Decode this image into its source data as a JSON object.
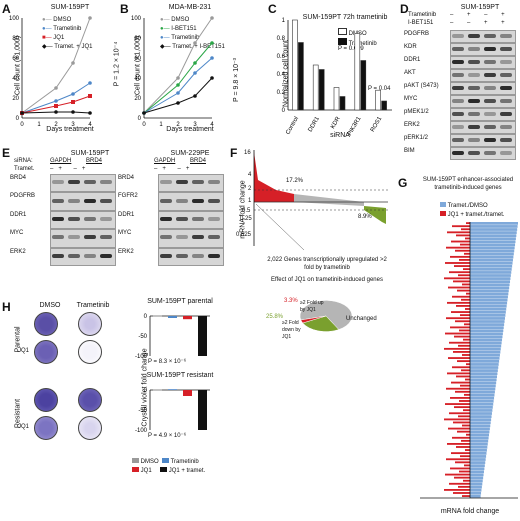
{
  "colors": {
    "dmso": "#9a9a9a",
    "tram": "#4e87c8",
    "ibet": "#2aa646",
    "jq1": "#d62027",
    "combo": "#111111",
    "lightblue": "#7fa9da",
    "olive": "#7aa02e",
    "piegray": "#b5b5b5"
  },
  "panels": {
    "A": "A",
    "B": "B",
    "C": "C",
    "D": "D",
    "E": "E",
    "F": "F",
    "G": "G",
    "H": "H"
  },
  "A": {
    "title": "SUM-159PT",
    "ylabel": "Cell count (×1,000)",
    "xlabel": "Days treatment",
    "legend": [
      "DMSO",
      "Trametinib",
      "JQ1",
      "Tramet. + JQ1"
    ],
    "pval": "P = 1.2 × 10⁻⁴"
  },
  "B": {
    "title": "MDA-MB-231",
    "ylabel": "Cell count (×1,000)",
    "xlabel": "Days treatment",
    "legend": [
      "DMSO",
      "I-BET151",
      "Trametinib",
      "Tramet. + I-BET151"
    ],
    "pval": "P = 9.8 × 10⁻³"
  },
  "C": {
    "title": "SUM-159PT 72h trametinib",
    "ylabel": "Normalized cell count",
    "xlabel": "siRNA",
    "legend": [
      "DMSO",
      "Trametinib"
    ],
    "p1": "P = 0.009",
    "p2": "P = 0.04"
  },
  "D": {
    "title": "SUM-159PT",
    "treat": [
      "Trametinib",
      "I-BET151"
    ],
    "proteins": [
      "PDGFRB",
      "KDR",
      "DDR1",
      "AKT",
      "pAKT (S473)",
      "MYC",
      "pMEK1/2",
      "ERK2",
      "pERK1/2",
      "BIM"
    ]
  },
  "E": {
    "left": {
      "title": "SUM-159PT",
      "sirna": "siRNA:",
      "tramet": "Tramet.",
      "groups": [
        "GAPDH",
        "BRD4"
      ],
      "proteins": [
        "BRD4",
        "PDGFRB",
        "DDR1",
        "MYC",
        "ERK2"
      ]
    },
    "right": {
      "title": "SUM-229PE",
      "groups": [
        "GAPDH",
        "BRD4"
      ],
      "proteins": [
        "BRD4",
        "FGFR2",
        "DDR1",
        "MYC",
        "ERK2"
      ]
    },
    "signs": [
      "–",
      "+",
      "–",
      "+"
    ]
  },
  "F": {
    "ylabel": "mRNA fold change",
    "pct1": "17.2%",
    "pct2": "8.9%",
    "caption": "2,022 Genes transcriptionally upregulated >2 fold by trametinib",
    "pie_title": "Effect of JQ1 on trametinib-induced genes",
    "pie_labels": [
      "Unchanged",
      "≥2 Fold down by JQ1",
      "≥2 Fold up by JQ1"
    ],
    "pie_pcts": [
      "25.8%",
      "3.3%"
    ]
  },
  "G": {
    "title": "SUM-159PT enhancer-associated trametinib-induced genes",
    "legend": [
      "Tramet./DMSO",
      "JQ1 + tramet./tramet."
    ],
    "xlabel": "mRNA fold change"
  },
  "H": {
    "rows": [
      "Parental",
      "Resistant"
    ],
    "cols": [
      "DMSO",
      "Trametinib"
    ],
    "jq1": "JQ1",
    "t1": "SUM-159PT parental",
    "t2": "SUM-159PT resistant",
    "pv1": "P = 8.3 × 10⁻⁶",
    "pv2": "P = 4.9 × 10⁻⁶",
    "ylabel": "Crystal violet fold change",
    "legend": [
      "DMSO",
      "Trametinib",
      "JQ1",
      "JQ1 + tramet."
    ]
  },
  "chart_data": [
    {
      "type": "line",
      "title": "SUM-159PT",
      "x": [
        0,
        2,
        3,
        4
      ],
      "series": [
        {
          "name": "DMSO",
          "values": [
            5,
            30,
            55,
            100
          ]
        },
        {
          "name": "Trametinib",
          "values": [
            5,
            17,
            24,
            35
          ]
        },
        {
          "name": "JQ1",
          "values": [
            5,
            12,
            16,
            22
          ]
        },
        {
          "name": "Tramet. + JQ1",
          "values": [
            5,
            6,
            6,
            5
          ]
        }
      ],
      "ylim": [
        0,
        100
      ]
    },
    {
      "type": "line",
      "title": "MDA-MB-231",
      "x": [
        0,
        2,
        3,
        4
      ],
      "series": [
        {
          "name": "DMSO",
          "values": [
            5,
            40,
            75,
            100
          ]
        },
        {
          "name": "I-BET151",
          "values": [
            5,
            33,
            55,
            75
          ]
        },
        {
          "name": "Trametinib",
          "values": [
            5,
            25,
            45,
            60
          ]
        },
        {
          "name": "Tramet. + I-BET151",
          "values": [
            5,
            15,
            22,
            40
          ]
        }
      ],
      "ylim": [
        0,
        100
      ]
    },
    {
      "type": "bar",
      "title": "SUM-159PT 72h trametinib",
      "categories": [
        "Control",
        "DDR1",
        "KDR",
        "PIK3R1",
        "ROS1"
      ],
      "series": [
        {
          "name": "DMSO",
          "values": [
            1.0,
            0.5,
            0.25,
            0.85,
            0.22
          ]
        },
        {
          "name": "Trametinib",
          "values": [
            0.75,
            0.45,
            0.15,
            0.55,
            0.1
          ]
        }
      ],
      "ylim": [
        0,
        1.0
      ]
    },
    {
      "type": "bar",
      "title": "SUM-159PT parental",
      "categories": [
        "DMSO",
        "Trametinib",
        "JQ1",
        "JQ1 + tramet."
      ],
      "values": [
        1,
        -5,
        -8,
        -100
      ],
      "ylim": [
        -100,
        0
      ]
    },
    {
      "type": "bar",
      "title": "SUM-159PT resistant",
      "categories": [
        "DMSO",
        "Trametinib",
        "JQ1",
        "JQ1 + tramet."
      ],
      "values": [
        1,
        2,
        -15,
        -100
      ],
      "ylim": [
        -100,
        0
      ]
    },
    {
      "type": "pie",
      "title": "Effect of JQ1 on trametinib-induced genes",
      "categories": [
        "Unchanged",
        "≥2 Fold down by JQ1",
        "≥2 Fold up by JQ1"
      ],
      "values": [
        70.9,
        25.8,
        3.3
      ]
    }
  ]
}
